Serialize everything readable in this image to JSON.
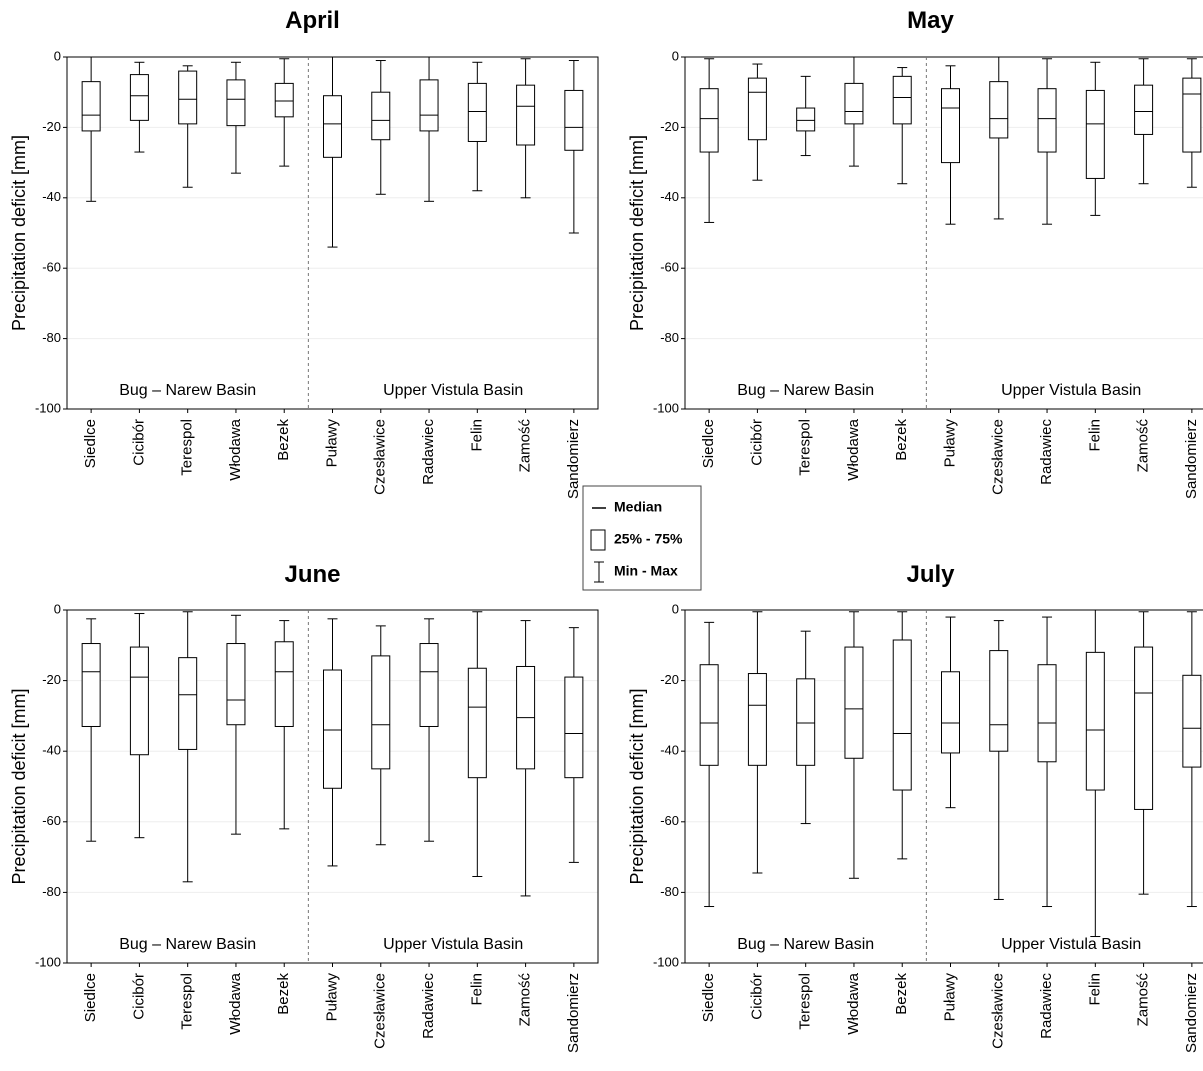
{
  "chart_data": [
    {
      "type": "box",
      "title": "April",
      "ylabel": "Precipitation deficit [mm]",
      "categories": [
        "Siedlce",
        "Cicibór",
        "Terespol",
        "Włodawa",
        "Bezek",
        "Puławy",
        "Czesławice",
        "Radawiec",
        "Felin",
        "Zamość",
        "Sandomierz"
      ],
      "max": [
        0,
        -1.5,
        -2.5,
        -1.5,
        -0.5,
        0,
        -1,
        0,
        -1.5,
        -0.5,
        -1
      ],
      "q3": [
        -7,
        -5,
        -4,
        -6.5,
        -7.5,
        -11,
        -10,
        -6.5,
        -7.5,
        -8,
        -9.5
      ],
      "median": [
        -16.5,
        -11,
        -12,
        -12,
        -12.5,
        -19,
        -18,
        -16.5,
        -15.5,
        -14,
        -20
      ],
      "q1": [
        -21,
        -18,
        -19,
        -19.5,
        -17,
        -28.5,
        -23.5,
        -21,
        -24,
        -25,
        -26.5
      ],
      "min": [
        -41,
        -27,
        -37,
        -33,
        -31,
        -54,
        -39,
        -41,
        -38,
        -40,
        -50
      ],
      "ylim": [
        -100,
        0
      ],
      "yticks": [
        0,
        -20,
        -40,
        -60,
        -80,
        -100
      ],
      "grid": true,
      "annotations": [
        "Bug – Narew Basin",
        "Upper Vistula Basin"
      ]
    },
    {
      "type": "box",
      "title": "May",
      "ylabel": "Precipitation deficit [mm]",
      "categories": [
        "Siedlce",
        "Cicibór",
        "Terespol",
        "Włodawa",
        "Bezek",
        "Puławy",
        "Czesławice",
        "Radawiec",
        "Felin",
        "Zamość",
        "Sandomierz"
      ],
      "max": [
        -0.5,
        -2,
        -5.5,
        0,
        -3,
        -2.5,
        0,
        -0.5,
        -1.5,
        -0.5,
        -0.5
      ],
      "q3": [
        -9,
        -6,
        -14.5,
        -7.5,
        -5.5,
        -9,
        -7,
        -9,
        -9.5,
        -8,
        -6
      ],
      "median": [
        -17.5,
        -10,
        -18,
        -15.5,
        -11.5,
        -14.5,
        -17.5,
        -17.5,
        -19,
        -15.5,
        -10.5
      ],
      "q1": [
        -27,
        -23.5,
        -21,
        -19,
        -19,
        -30,
        -23,
        -27,
        -34.5,
        -22,
        -27
      ],
      "min": [
        -47,
        -35,
        -28,
        -31,
        -36,
        -47.5,
        -46,
        -47.5,
        -45,
        -36,
        -37
      ],
      "ylim": [
        -100,
        0
      ],
      "yticks": [
        0,
        -20,
        -40,
        -60,
        -80,
        -100
      ],
      "grid": true,
      "annotations": [
        "Bug – Narew Basin",
        "Upper Vistula Basin"
      ]
    },
    {
      "type": "box",
      "title": "June",
      "ylabel": "Precipitation deficit [mm]",
      "categories": [
        "Siedlce",
        "Cicibór",
        "Terespol",
        "Włodawa",
        "Bezek",
        "Puławy",
        "Czesławice",
        "Radawiec",
        "Felin",
        "Zamość",
        "Sandomierz"
      ],
      "max": [
        -2.5,
        -1,
        -0.5,
        -1.5,
        -3,
        -2.5,
        -4.5,
        -2.5,
        -0.5,
        -3,
        -5
      ],
      "q3": [
        -9.5,
        -10.5,
        -13.5,
        -9.5,
        -9,
        -17,
        -13,
        -9.5,
        -16.5,
        -16,
        -19
      ],
      "median": [
        -17.5,
        -19,
        -24,
        -25.5,
        -17.5,
        -34,
        -32.5,
        -17.5,
        -27.5,
        -30.5,
        -35
      ],
      "q1": [
        -33,
        -41,
        -39.5,
        -32.5,
        -33,
        -50.5,
        -45,
        -33,
        -47.5,
        -45,
        -47.5
      ],
      "min": [
        -65.5,
        -64.5,
        -77,
        -63.5,
        -62,
        -72.5,
        -66.5,
        -65.5,
        -75.5,
        -81,
        -71.5
      ],
      "ylim": [
        -100,
        0
      ],
      "yticks": [
        0,
        -20,
        -40,
        -60,
        -80,
        -100
      ],
      "grid": true,
      "annotations": [
        "Bug – Narew Basin",
        "Upper Vistula Basin"
      ]
    },
    {
      "type": "box",
      "title": "July",
      "ylabel": "Precipitation deficit [mm]",
      "categories": [
        "Siedlce",
        "Cicibór",
        "Terespol",
        "Włodawa",
        "Bezek",
        "Puławy",
        "Czesławice",
        "Radawiec",
        "Felin",
        "Zamość",
        "Sandomierz"
      ],
      "max": [
        -3.5,
        -0.5,
        -6,
        -0.5,
        -0.5,
        -2,
        -3,
        -2,
        0,
        -0.5,
        -0.5
      ],
      "q3": [
        -15.5,
        -18,
        -19.5,
        -10.5,
        -8.5,
        -17.5,
        -11.5,
        -15.5,
        -12,
        -10.5,
        -18.5
      ],
      "median": [
        -32,
        -27,
        -32,
        -28,
        -35,
        -32,
        -32.5,
        -32,
        -34,
        -23.5,
        -33.5
      ],
      "q1": [
        -44,
        -44,
        -44,
        -42,
        -51,
        -40.5,
        -40,
        -43,
        -51,
        -56.5,
        -44.5
      ],
      "min": [
        -84,
        -74.5,
        -60.5,
        -76,
        -70.5,
        -56,
        -82,
        -84,
        -92.5,
        -80.5,
        -84
      ],
      "ylim": [
        -100,
        0
      ],
      "yticks": [
        0,
        -20,
        -40,
        -60,
        -80,
        -100
      ],
      "grid": true,
      "annotations": [
        "Bug – Narew Basin",
        "Upper Vistula Basin"
      ]
    }
  ],
  "legend": {
    "median": "Median",
    "box": "25% - 75%",
    "whisker": "Min - Max"
  }
}
